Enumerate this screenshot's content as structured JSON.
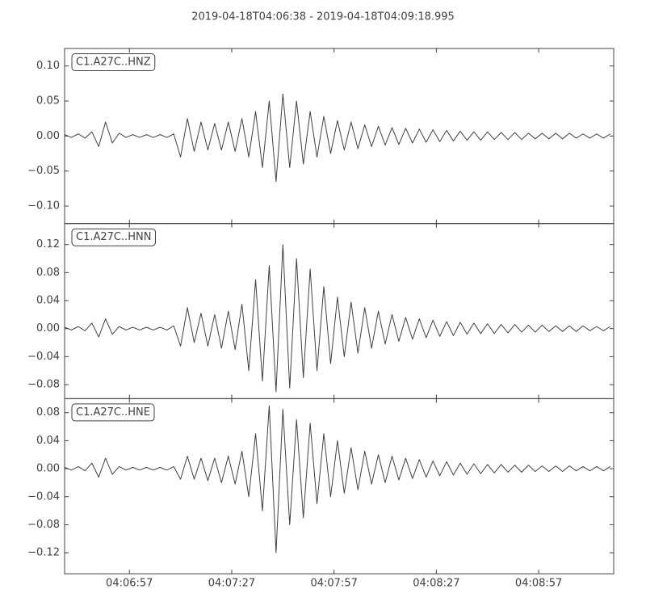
{
  "chart_data": {
    "type": "line",
    "title": "2019-04-18T04:06:38  -  2019-04-18T04:09:18.995",
    "x": [
      "04:06:38",
      "04:06:40",
      "04:06:42",
      "04:06:44",
      "04:06:46",
      "04:06:48",
      "04:06:50",
      "04:06:52",
      "04:06:54",
      "04:06:56",
      "04:06:58",
      "04:07:00",
      "04:07:02",
      "04:07:04",
      "04:07:06",
      "04:07:08",
      "04:07:10",
      "04:07:12",
      "04:07:14",
      "04:07:16",
      "04:07:18",
      "04:07:20",
      "04:07:22",
      "04:07:24",
      "04:07:26",
      "04:07:28",
      "04:07:30",
      "04:07:32",
      "04:07:34",
      "04:07:36",
      "04:07:38",
      "04:07:40",
      "04:07:42",
      "04:07:44",
      "04:07:46",
      "04:07:48",
      "04:07:50",
      "04:07:52",
      "04:07:54",
      "04:07:56",
      "04:07:58",
      "04:08:00",
      "04:08:02",
      "04:08:04",
      "04:08:06",
      "04:08:08",
      "04:08:10",
      "04:08:12",
      "04:08:14",
      "04:08:16",
      "04:08:18",
      "04:08:20",
      "04:08:22",
      "04:08:24",
      "04:08:26",
      "04:08:28",
      "04:08:30",
      "04:08:32",
      "04:08:34",
      "04:08:36",
      "04:08:38",
      "04:08:40",
      "04:08:42",
      "04:08:44",
      "04:08:46",
      "04:08:48",
      "04:08:50",
      "04:08:52",
      "04:08:54",
      "04:08:56",
      "04:08:58",
      "04:09:00",
      "04:09:02",
      "04:09:04",
      "04:09:06",
      "04:09:08",
      "04:09:10",
      "04:09:12",
      "04:09:14",
      "04:09:16",
      "04:09:18"
    ],
    "xlim": [
      "04:06:38",
      "04:09:18.995"
    ],
    "xticks": [
      "04:06:57",
      "04:07:27",
      "04:07:57",
      "04:08:27",
      "04:08:57"
    ],
    "series": [
      {
        "name": "C1.A27C..HNZ",
        "color": "#404040",
        "ylim": [
          -0.125,
          0.125
        ],
        "yticks": [
          {
            "value": 0.1,
            "label": "0.10"
          },
          0.05,
          {
            "value": 0,
            "label": "0.00"
          },
          {
            "value": -0.05,
            "label": "−0.05"
          },
          {
            "value": -0.1,
            "label": "−0.10"
          }
        ],
        "values": [
          0.002,
          -0.002,
          0.003,
          -0.003,
          0.006,
          -0.015,
          0.02,
          -0.01,
          0.004,
          -0.002,
          0.002,
          -0.002,
          0.002,
          -0.002,
          0.002,
          -0.002,
          0.003,
          -0.03,
          0.025,
          -0.022,
          0.02,
          -0.02,
          0.018,
          -0.02,
          0.02,
          -0.022,
          0.025,
          -0.03,
          0.035,
          -0.045,
          0.05,
          -0.065,
          0.06,
          -0.045,
          0.05,
          -0.04,
          0.035,
          -0.03,
          0.028,
          -0.025,
          0.022,
          -0.02,
          0.02,
          -0.018,
          0.016,
          -0.015,
          0.014,
          -0.013,
          0.012,
          -0.012,
          0.011,
          -0.01,
          0.01,
          -0.009,
          0.009,
          -0.008,
          0.008,
          -0.007,
          0.007,
          -0.006,
          0.006,
          -0.006,
          0.006,
          -0.005,
          0.005,
          -0.005,
          0.005,
          -0.005,
          0.004,
          -0.004,
          0.004,
          -0.004,
          0.004,
          -0.004,
          0.004,
          -0.003,
          0.003,
          -0.003,
          0.003,
          -0.003,
          0.003
        ]
      },
      {
        "name": "C1.A27C..HNN",
        "color": "#404040",
        "ylim": [
          -0.1,
          0.15
        ],
        "yticks": [
          0.12,
          0.08,
          0.04,
          {
            "value": 0,
            "label": "0.00"
          },
          {
            "value": -0.04,
            "label": "−0.04"
          },
          {
            "value": -0.08,
            "label": "−0.08"
          }
        ],
        "values": [
          0.002,
          -0.002,
          0.003,
          -0.003,
          0.008,
          -0.012,
          0.014,
          -0.008,
          0.003,
          -0.002,
          0.002,
          -0.002,
          0.002,
          -0.002,
          0.002,
          -0.002,
          0.004,
          -0.025,
          0.03,
          -0.02,
          0.022,
          -0.025,
          0.02,
          -0.028,
          0.025,
          -0.03,
          0.035,
          -0.06,
          0.07,
          -0.075,
          0.09,
          -0.09,
          0.12,
          -0.085,
          0.1,
          -0.07,
          0.085,
          -0.06,
          0.06,
          -0.05,
          0.045,
          -0.04,
          0.038,
          -0.035,
          0.03,
          -0.028,
          0.025,
          -0.022,
          0.02,
          -0.018,
          0.016,
          -0.015,
          0.014,
          -0.013,
          0.012,
          -0.011,
          0.01,
          -0.01,
          0.009,
          -0.008,
          0.008,
          -0.007,
          0.007,
          -0.007,
          0.006,
          -0.006,
          0.006,
          -0.005,
          0.005,
          -0.005,
          0.005,
          -0.004,
          0.004,
          -0.004,
          0.004,
          -0.004,
          0.004,
          -0.003,
          0.003,
          -0.003,
          0.003
        ]
      },
      {
        "name": "C1.A27C..HNE",
        "color": "#404040",
        "ylim": [
          -0.15,
          0.1
        ],
        "yticks": [
          0.08,
          0.04,
          {
            "value": 0,
            "label": "0.00"
          },
          {
            "value": -0.04,
            "label": "−0.04"
          },
          {
            "value": -0.08,
            "label": "−0.08"
          },
          {
            "value": -0.12,
            "label": "−0.12"
          }
        ],
        "values": [
          0.002,
          -0.002,
          0.003,
          -0.003,
          0.008,
          -0.012,
          0.015,
          -0.008,
          0.003,
          -0.002,
          0.002,
          -0.002,
          0.002,
          -0.002,
          0.002,
          -0.002,
          0.003,
          -0.015,
          0.018,
          -0.015,
          0.015,
          -0.017,
          0.015,
          -0.02,
          0.018,
          -0.022,
          0.025,
          -0.04,
          0.05,
          -0.06,
          0.09,
          -0.12,
          0.085,
          -0.08,
          0.07,
          -0.07,
          0.065,
          -0.05,
          0.05,
          -0.04,
          0.04,
          -0.035,
          0.03,
          -0.03,
          0.025,
          -0.022,
          0.02,
          -0.02,
          0.018,
          -0.016,
          0.015,
          -0.014,
          0.013,
          -0.012,
          0.011,
          -0.01,
          0.01,
          -0.009,
          0.008,
          -0.008,
          0.007,
          -0.007,
          0.006,
          -0.006,
          0.006,
          -0.005,
          0.005,
          -0.005,
          0.005,
          -0.004,
          0.004,
          -0.004,
          0.004,
          -0.004,
          0.004,
          -0.003,
          0.003,
          -0.003,
          0.003,
          -0.003,
          0.003
        ]
      }
    ]
  }
}
